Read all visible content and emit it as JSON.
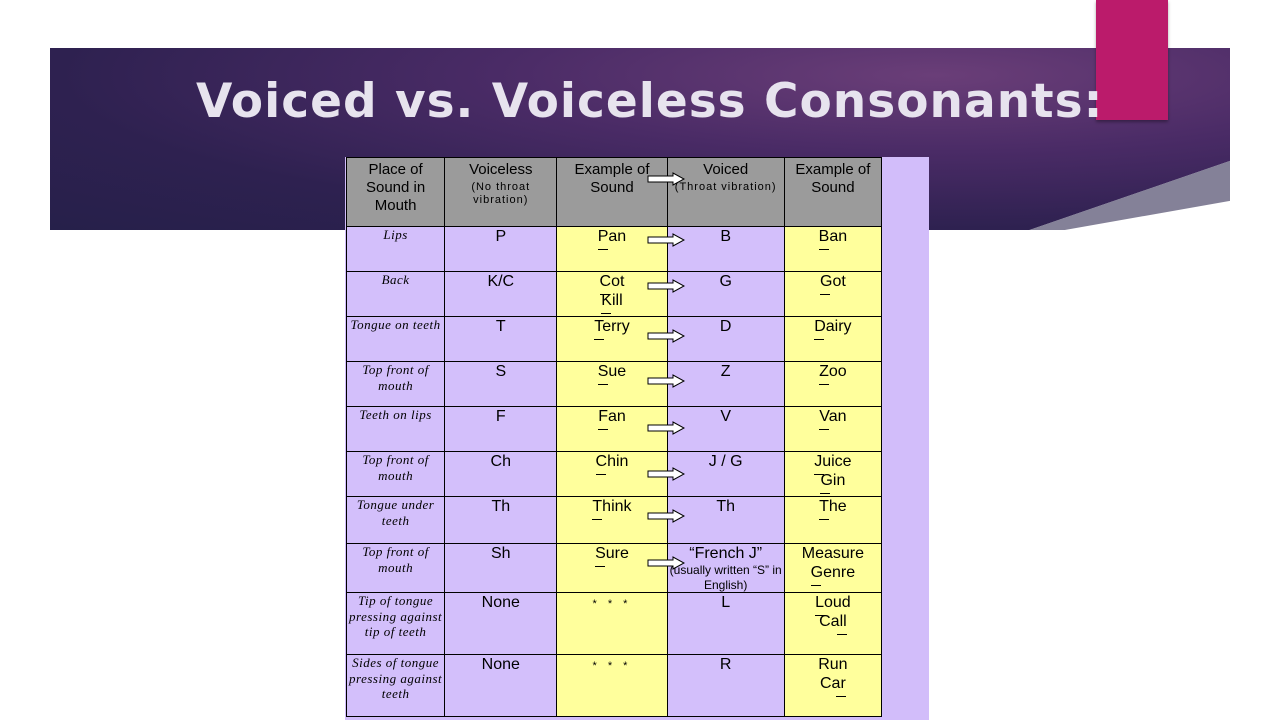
{
  "title": "Voiced vs. Voiceless Consonants:",
  "colors": {
    "banner": "#2e2150",
    "accent": "#bb1b6b",
    "purple_cell": "#d3bffb",
    "yellow_cell": "#ffff9c",
    "header_cell": "#9b9b9b"
  },
  "headers": {
    "place": "Place of Sound in Mouth",
    "voiceless": "Voiceless",
    "voiceless_note": "(No throat vibration)",
    "example1": "Example of Sound",
    "voiced": "Voiced",
    "voiced_note": "(Throat vibration)",
    "example2": "Example of Sound"
  },
  "rows": [
    {
      "place": "Lips",
      "voiceless": "P",
      "ex1a": "Pan",
      "ex1b": "",
      "voiced": "B",
      "voiced_note": "",
      "ex2a": "Ban",
      "ex2b": ""
    },
    {
      "place": "Back",
      "voiceless": "K/C",
      "ex1a": "Cot",
      "ex1b": "Kill",
      "voiced": "G",
      "voiced_note": "",
      "ex2a": "Got",
      "ex2b": ""
    },
    {
      "place": "Tongue on teeth",
      "voiceless": "T",
      "ex1a": "Terry",
      "ex1b": "",
      "voiced": "D",
      "voiced_note": "",
      "ex2a": "Dairy",
      "ex2b": ""
    },
    {
      "place": "Top front of mouth",
      "voiceless": "S",
      "ex1a": "Sue",
      "ex1b": "",
      "voiced": "Z",
      "voiced_note": "",
      "ex2a": "Zoo",
      "ex2b": ""
    },
    {
      "place": "Teeth on lips",
      "voiceless": "F",
      "ex1a": "Fan",
      "ex1b": "",
      "voiced": "V",
      "voiced_note": "",
      "ex2a": "Van",
      "ex2b": ""
    },
    {
      "place": "Top front of mouth",
      "voiceless": "Ch",
      "ex1a": "Chin",
      "ex1b": "",
      "voiced": "J / G",
      "voiced_note": "",
      "ex2a": "Juice",
      "ex2b": "Gin"
    },
    {
      "place": "Tongue under teeth",
      "voiceless": "Th",
      "ex1a": "Think",
      "ex1b": "",
      "voiced": "Th",
      "voiced_note": "",
      "ex2a": "The",
      "ex2b": ""
    },
    {
      "place": "Top front of mouth",
      "voiceless": "Sh",
      "ex1a": "Sure",
      "ex1b": "",
      "voiced": "“French J”",
      "voiced_note": "(usually written “S” in English)",
      "ex2a": "Measure",
      "ex2b": "Genre"
    },
    {
      "place": "Tip of tongue pressing against tip of teeth",
      "voiceless": "None",
      "ex1a": "* * *",
      "ex1b": "",
      "voiced": "L",
      "voiced_note": "",
      "ex2a": "Loud",
      "ex2b": "Call"
    },
    {
      "place": "Sides of tongue pressing against teeth",
      "voiceless": "None",
      "ex1a": "* * *",
      "ex1b": "",
      "voiced": "R",
      "voiced_note": "",
      "ex2a": "Run",
      "ex2b": "Car"
    }
  ]
}
